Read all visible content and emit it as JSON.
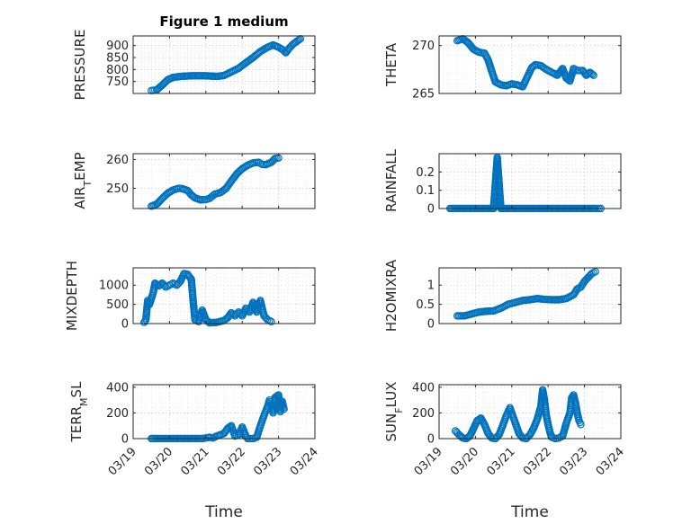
{
  "chart_data": [
    {
      "type": "scatter",
      "title": "Figure 1 medium",
      "ylabel": "PRESSURE",
      "ylim": [
        700,
        940
      ],
      "yticks": [
        750,
        800,
        850,
        900
      ],
      "ytick_labels": [
        "750",
        "800",
        "850",
        "900"
      ],
      "x_tick_labels": [],
      "series": [
        {
          "points": [
            [
              0.5,
              712
            ],
            [
              0.65,
              715
            ],
            [
              0.8,
              735
            ],
            [
              0.95,
              757
            ],
            [
              1.1,
              767
            ],
            [
              1.3,
              771
            ],
            [
              1.5,
              773
            ],
            [
              1.7,
              774
            ],
            [
              1.9,
              774
            ],
            [
              2.1,
              773
            ],
            [
              2.3,
              771
            ],
            [
              2.5,
              775
            ],
            [
              2.7,
              790
            ],
            [
              2.9,
              805
            ],
            [
              3.1,
              828
            ],
            [
              3.3,
              850
            ],
            [
              3.5,
              875
            ],
            [
              3.7,
              893
            ],
            [
              3.85,
              902
            ],
            [
              4.0,
              893
            ],
            [
              4.1,
              884
            ],
            [
              4.2,
              870
            ],
            [
              4.3,
              890
            ],
            [
              4.4,
              906
            ],
            [
              4.5,
              917
            ],
            [
              4.6,
              928
            ]
          ]
        }
      ]
    },
    {
      "type": "scatter",
      "ylabel": "THETA",
      "ylim": [
        265,
        271
      ],
      "yticks": [
        265,
        270
      ],
      "ytick_labels": [
        "265",
        "270"
      ],
      "x_tick_labels": [],
      "series": [
        {
          "points": [
            [
              0.5,
              270.5
            ],
            [
              0.65,
              270.7
            ],
            [
              0.8,
              270.3
            ],
            [
              0.95,
              269.6
            ],
            [
              1.1,
              269.3
            ],
            [
              1.25,
              269.2
            ],
            [
              1.35,
              268.5
            ],
            [
              1.45,
              267.3
            ],
            [
              1.55,
              266.2
            ],
            [
              1.7,
              265.9
            ],
            [
              1.85,
              265.8
            ],
            [
              2.0,
              266.0
            ],
            [
              2.15,
              265.9
            ],
            [
              2.3,
              265.7
            ],
            [
              2.45,
              266.9
            ],
            [
              2.55,
              267.7
            ],
            [
              2.65,
              268.0
            ],
            [
              2.8,
              267.9
            ],
            [
              2.95,
              267.5
            ],
            [
              3.1,
              267.2
            ],
            [
              3.25,
              266.9
            ],
            [
              3.4,
              267.6
            ],
            [
              3.5,
              266.6
            ],
            [
              3.6,
              266.3
            ],
            [
              3.7,
              267.6
            ],
            [
              3.8,
              267.4
            ],
            [
              3.95,
              267.4
            ],
            [
              4.05,
              266.9
            ],
            [
              4.15,
              267.2
            ],
            [
              4.25,
              266.9
            ]
          ]
        }
      ]
    },
    {
      "type": "scatter",
      "ylabel": "AIR_TEMP",
      "ylim": [
        243,
        262
      ],
      "yticks": [
        250,
        260
      ],
      "ytick_labels": [
        "250",
        "260"
      ],
      "x_tick_labels": [],
      "series": [
        {
          "points": [
            [
              0.5,
              243.8
            ],
            [
              0.65,
              244.5
            ],
            [
              0.8,
              246.5
            ],
            [
              0.95,
              248.3
            ],
            [
              1.1,
              249.4
            ],
            [
              1.25,
              250.0
            ],
            [
              1.35,
              249.9
            ],
            [
              1.5,
              249.2
            ],
            [
              1.6,
              247.7
            ],
            [
              1.7,
              246.7
            ],
            [
              1.85,
              246.0
            ],
            [
              2.0,
              246.1
            ],
            [
              2.1,
              246.5
            ],
            [
              2.25,
              248.0
            ],
            [
              2.4,
              248.5
            ],
            [
              2.55,
              249.9
            ],
            [
              2.7,
              252.5
            ],
            [
              2.85,
              255.0
            ],
            [
              3.0,
              256.8
            ],
            [
              3.15,
              258.0
            ],
            [
              3.3,
              258.8
            ],
            [
              3.45,
              259.0
            ],
            [
              3.55,
              258.3
            ],
            [
              3.65,
              258.2
            ],
            [
              3.8,
              259.0
            ],
            [
              3.9,
              260.3
            ],
            [
              4.0,
              260.5
            ]
          ]
        }
      ]
    },
    {
      "type": "scatter",
      "ylabel": "RAINFALL",
      "ylim": [
        0,
        0.3
      ],
      "yticks": [
        0,
        0.1,
        0.2
      ],
      "ytick_labels": [
        "0",
        "0.1",
        "0.2"
      ],
      "x_tick_labels": [],
      "series": [
        {
          "points": [
            [
              0.3,
              0
            ],
            [
              0.5,
              0
            ],
            [
              0.7,
              0
            ],
            [
              0.9,
              0
            ],
            [
              1.1,
              0
            ],
            [
              1.3,
              0
            ],
            [
              1.5,
              0
            ],
            [
              1.6,
              0.28
            ],
            [
              1.7,
              0
            ],
            [
              1.9,
              0
            ],
            [
              2.1,
              0
            ],
            [
              2.3,
              0
            ],
            [
              2.5,
              0
            ],
            [
              2.7,
              0
            ],
            [
              2.9,
              0
            ],
            [
              3.1,
              0
            ],
            [
              3.3,
              0
            ],
            [
              3.5,
              0
            ],
            [
              3.7,
              0
            ],
            [
              3.9,
              0
            ],
            [
              4.1,
              0
            ],
            [
              4.3,
              0
            ],
            [
              4.45,
              0
            ]
          ]
        }
      ]
    },
    {
      "type": "scatter",
      "ylabel": "MIXDEPTH",
      "ylim": [
        0,
        1450
      ],
      "yticks": [
        0,
        500,
        1000
      ],
      "ytick_labels": [
        "0",
        "500",
        "1000"
      ],
      "x_tick_labels": [],
      "series": [
        {
          "points": [
            [
              0.3,
              30
            ],
            [
              0.35,
              100
            ],
            [
              0.4,
              600
            ],
            [
              0.45,
              500
            ],
            [
              0.55,
              800
            ],
            [
              0.6,
              1050
            ],
            [
              0.7,
              980
            ],
            [
              0.8,
              1050
            ],
            [
              0.9,
              950
            ],
            [
              1.0,
              1000
            ],
            [
              1.1,
              1050
            ],
            [
              1.2,
              1000
            ],
            [
              1.3,
              1100
            ],
            [
              1.4,
              1300
            ],
            [
              1.5,
              1280
            ],
            [
              1.6,
              1150
            ],
            [
              1.65,
              600
            ],
            [
              1.7,
              100
            ],
            [
              1.8,
              50
            ],
            [
              1.9,
              350
            ],
            [
              2.0,
              100
            ],
            [
              2.1,
              20
            ],
            [
              2.3,
              30
            ],
            [
              2.5,
              80
            ],
            [
              2.6,
              150
            ],
            [
              2.7,
              280
            ],
            [
              2.8,
              200
            ],
            [
              2.9,
              300
            ],
            [
              3.0,
              200
            ],
            [
              3.1,
              400
            ],
            [
              3.2,
              300
            ],
            [
              3.3,
              550
            ],
            [
              3.4,
              300
            ],
            [
              3.5,
              600
            ],
            [
              3.6,
              200
            ],
            [
              3.7,
              100
            ],
            [
              3.8,
              50
            ]
          ]
        }
      ]
    },
    {
      "type": "scatter",
      "ylabel": "H2OMIXRA",
      "ylim": [
        0,
        1.45
      ],
      "yticks": [
        0,
        0.5,
        1
      ],
      "ytick_labels": [
        "0",
        "0.5",
        "1"
      ],
      "x_tick_labels": [],
      "series": [
        {
          "points": [
            [
              0.5,
              0.2
            ],
            [
              0.7,
              0.2
            ],
            [
              0.9,
              0.25
            ],
            [
              1.1,
              0.3
            ],
            [
              1.3,
              0.32
            ],
            [
              1.5,
              0.33
            ],
            [
              1.7,
              0.4
            ],
            [
              1.9,
              0.5
            ],
            [
              2.1,
              0.55
            ],
            [
              2.3,
              0.6
            ],
            [
              2.5,
              0.62
            ],
            [
              2.7,
              0.65
            ],
            [
              2.9,
              0.63
            ],
            [
              3.1,
              0.62
            ],
            [
              3.3,
              0.62
            ],
            [
              3.5,
              0.65
            ],
            [
              3.7,
              0.75
            ],
            [
              3.8,
              0.9
            ],
            [
              3.9,
              0.95
            ],
            [
              4.0,
              1.1
            ],
            [
              4.1,
              1.2
            ],
            [
              4.2,
              1.3
            ],
            [
              4.3,
              1.35
            ]
          ]
        }
      ]
    },
    {
      "type": "scatter",
      "ylabel": "TERR_MSL",
      "ylim": [
        0,
        420
      ],
      "yticks": [
        0,
        200,
        400
      ],
      "ytick_labels": [
        "0",
        "200",
        "400"
      ],
      "xlabel": "Time",
      "x_tick_labels": [
        "03/19",
        "03/20",
        "03/21",
        "03/22",
        "03/23",
        "03/24"
      ],
      "series": [
        {
          "points": [
            [
              0.5,
              0
            ],
            [
              0.7,
              0
            ],
            [
              0.9,
              0
            ],
            [
              1.1,
              0
            ],
            [
              1.3,
              0
            ],
            [
              1.5,
              0
            ],
            [
              1.7,
              0
            ],
            [
              1.9,
              0
            ],
            [
              2.0,
              5
            ],
            [
              2.1,
              10
            ],
            [
              2.2,
              5
            ],
            [
              2.3,
              20
            ],
            [
              2.5,
              40
            ],
            [
              2.6,
              80
            ],
            [
              2.7,
              100
            ],
            [
              2.75,
              60
            ],
            [
              2.8,
              20
            ],
            [
              2.9,
              30
            ],
            [
              3.0,
              90
            ],
            [
              3.1,
              20
            ],
            [
              3.15,
              0
            ],
            [
              3.3,
              0
            ],
            [
              3.4,
              10
            ],
            [
              3.5,
              100
            ],
            [
              3.6,
              180
            ],
            [
              3.7,
              250
            ],
            [
              3.75,
              300
            ],
            [
              3.8,
              270
            ],
            [
              3.85,
              200
            ],
            [
              3.9,
              320
            ],
            [
              4.0,
              340
            ],
            [
              4.05,
              210
            ],
            [
              4.1,
              290
            ],
            [
              4.15,
              230
            ]
          ]
        }
      ]
    },
    {
      "type": "scatter",
      "ylabel": "SUN_FLUX",
      "ylim": [
        0,
        420
      ],
      "yticks": [
        0,
        200,
        400
      ],
      "ytick_labels": [
        "0",
        "200",
        "400"
      ],
      "xlabel": "Time",
      "x_tick_labels": [
        "03/19",
        "03/20",
        "03/21",
        "03/22",
        "03/23",
        "03/24"
      ],
      "series": [
        {
          "points": [
            [
              0.45,
              60
            ],
            [
              0.55,
              30
            ],
            [
              0.65,
              5
            ],
            [
              0.75,
              0
            ],
            [
              0.85,
              20
            ],
            [
              0.95,
              80
            ],
            [
              1.05,
              140
            ],
            [
              1.15,
              160
            ],
            [
              1.25,
              110
            ],
            [
              1.35,
              40
            ],
            [
              1.45,
              5
            ],
            [
              1.55,
              0
            ],
            [
              1.65,
              30
            ],
            [
              1.75,
              100
            ],
            [
              1.85,
              180
            ],
            [
              1.95,
              240
            ],
            [
              2.0,
              200
            ],
            [
              2.1,
              120
            ],
            [
              2.2,
              40
            ],
            [
              2.3,
              5
            ],
            [
              2.4,
              0
            ],
            [
              2.5,
              30
            ],
            [
              2.6,
              80
            ],
            [
              2.7,
              150
            ],
            [
              2.8,
              250
            ],
            [
              2.85,
              380
            ],
            [
              2.9,
              300
            ],
            [
              2.95,
              180
            ],
            [
              3.0,
              110
            ],
            [
              3.05,
              50
            ],
            [
              3.1,
              10
            ],
            [
              3.2,
              0
            ],
            [
              3.3,
              5
            ],
            [
              3.4,
              20
            ],
            [
              3.5,
              120
            ],
            [
              3.6,
              200
            ],
            [
              3.65,
              320
            ],
            [
              3.7,
              340
            ],
            [
              3.75,
              280
            ],
            [
              3.8,
              200
            ],
            [
              3.85,
              140
            ],
            [
              3.9,
              110
            ]
          ]
        }
      ]
    }
  ]
}
